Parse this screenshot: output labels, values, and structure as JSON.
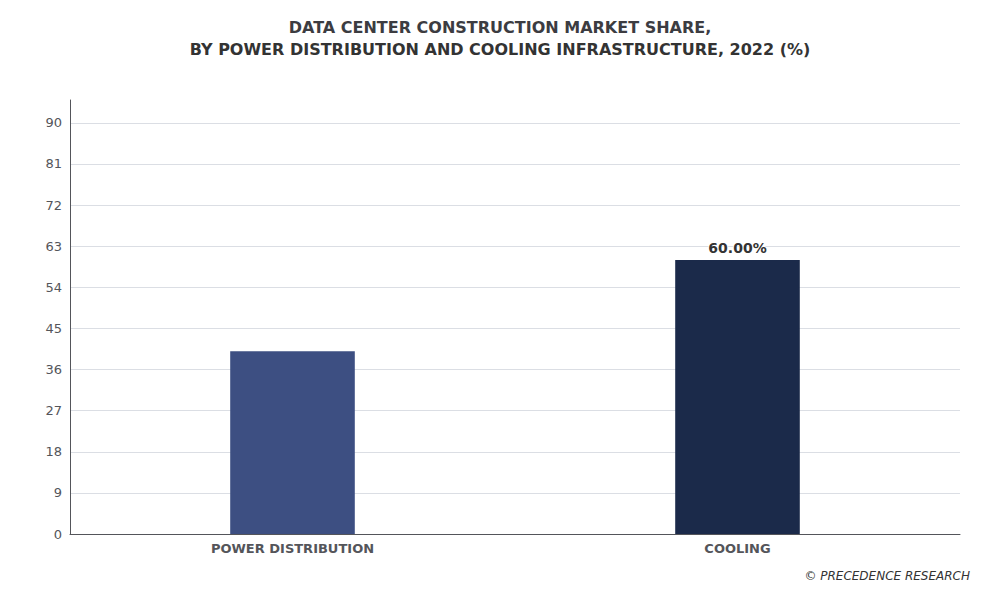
{
  "chart_data": {
    "type": "bar",
    "title": "DATA CENTER CONSTRUCTION MARKET SHARE,",
    "subtitle": "BY POWER DISTRIBUTION AND COOLING INFRASTRUCTURE, 2022 (%)",
    "categories": [
      "POWER DISTRIBUTION",
      "COOLING"
    ],
    "values": [
      40.0,
      60.0
    ],
    "value_labels": [
      null,
      "60.00%"
    ],
    "data_labels": true,
    "colors": [
      "#3d4f82",
      "#1b2a4a"
    ],
    "ylim": [
      0,
      95
    ],
    "yticks": [
      0,
      9,
      18,
      27,
      36,
      45,
      54,
      63,
      72,
      81,
      90
    ],
    "grid": true,
    "annotation": "© PRECEDENCE RESEARCH"
  }
}
